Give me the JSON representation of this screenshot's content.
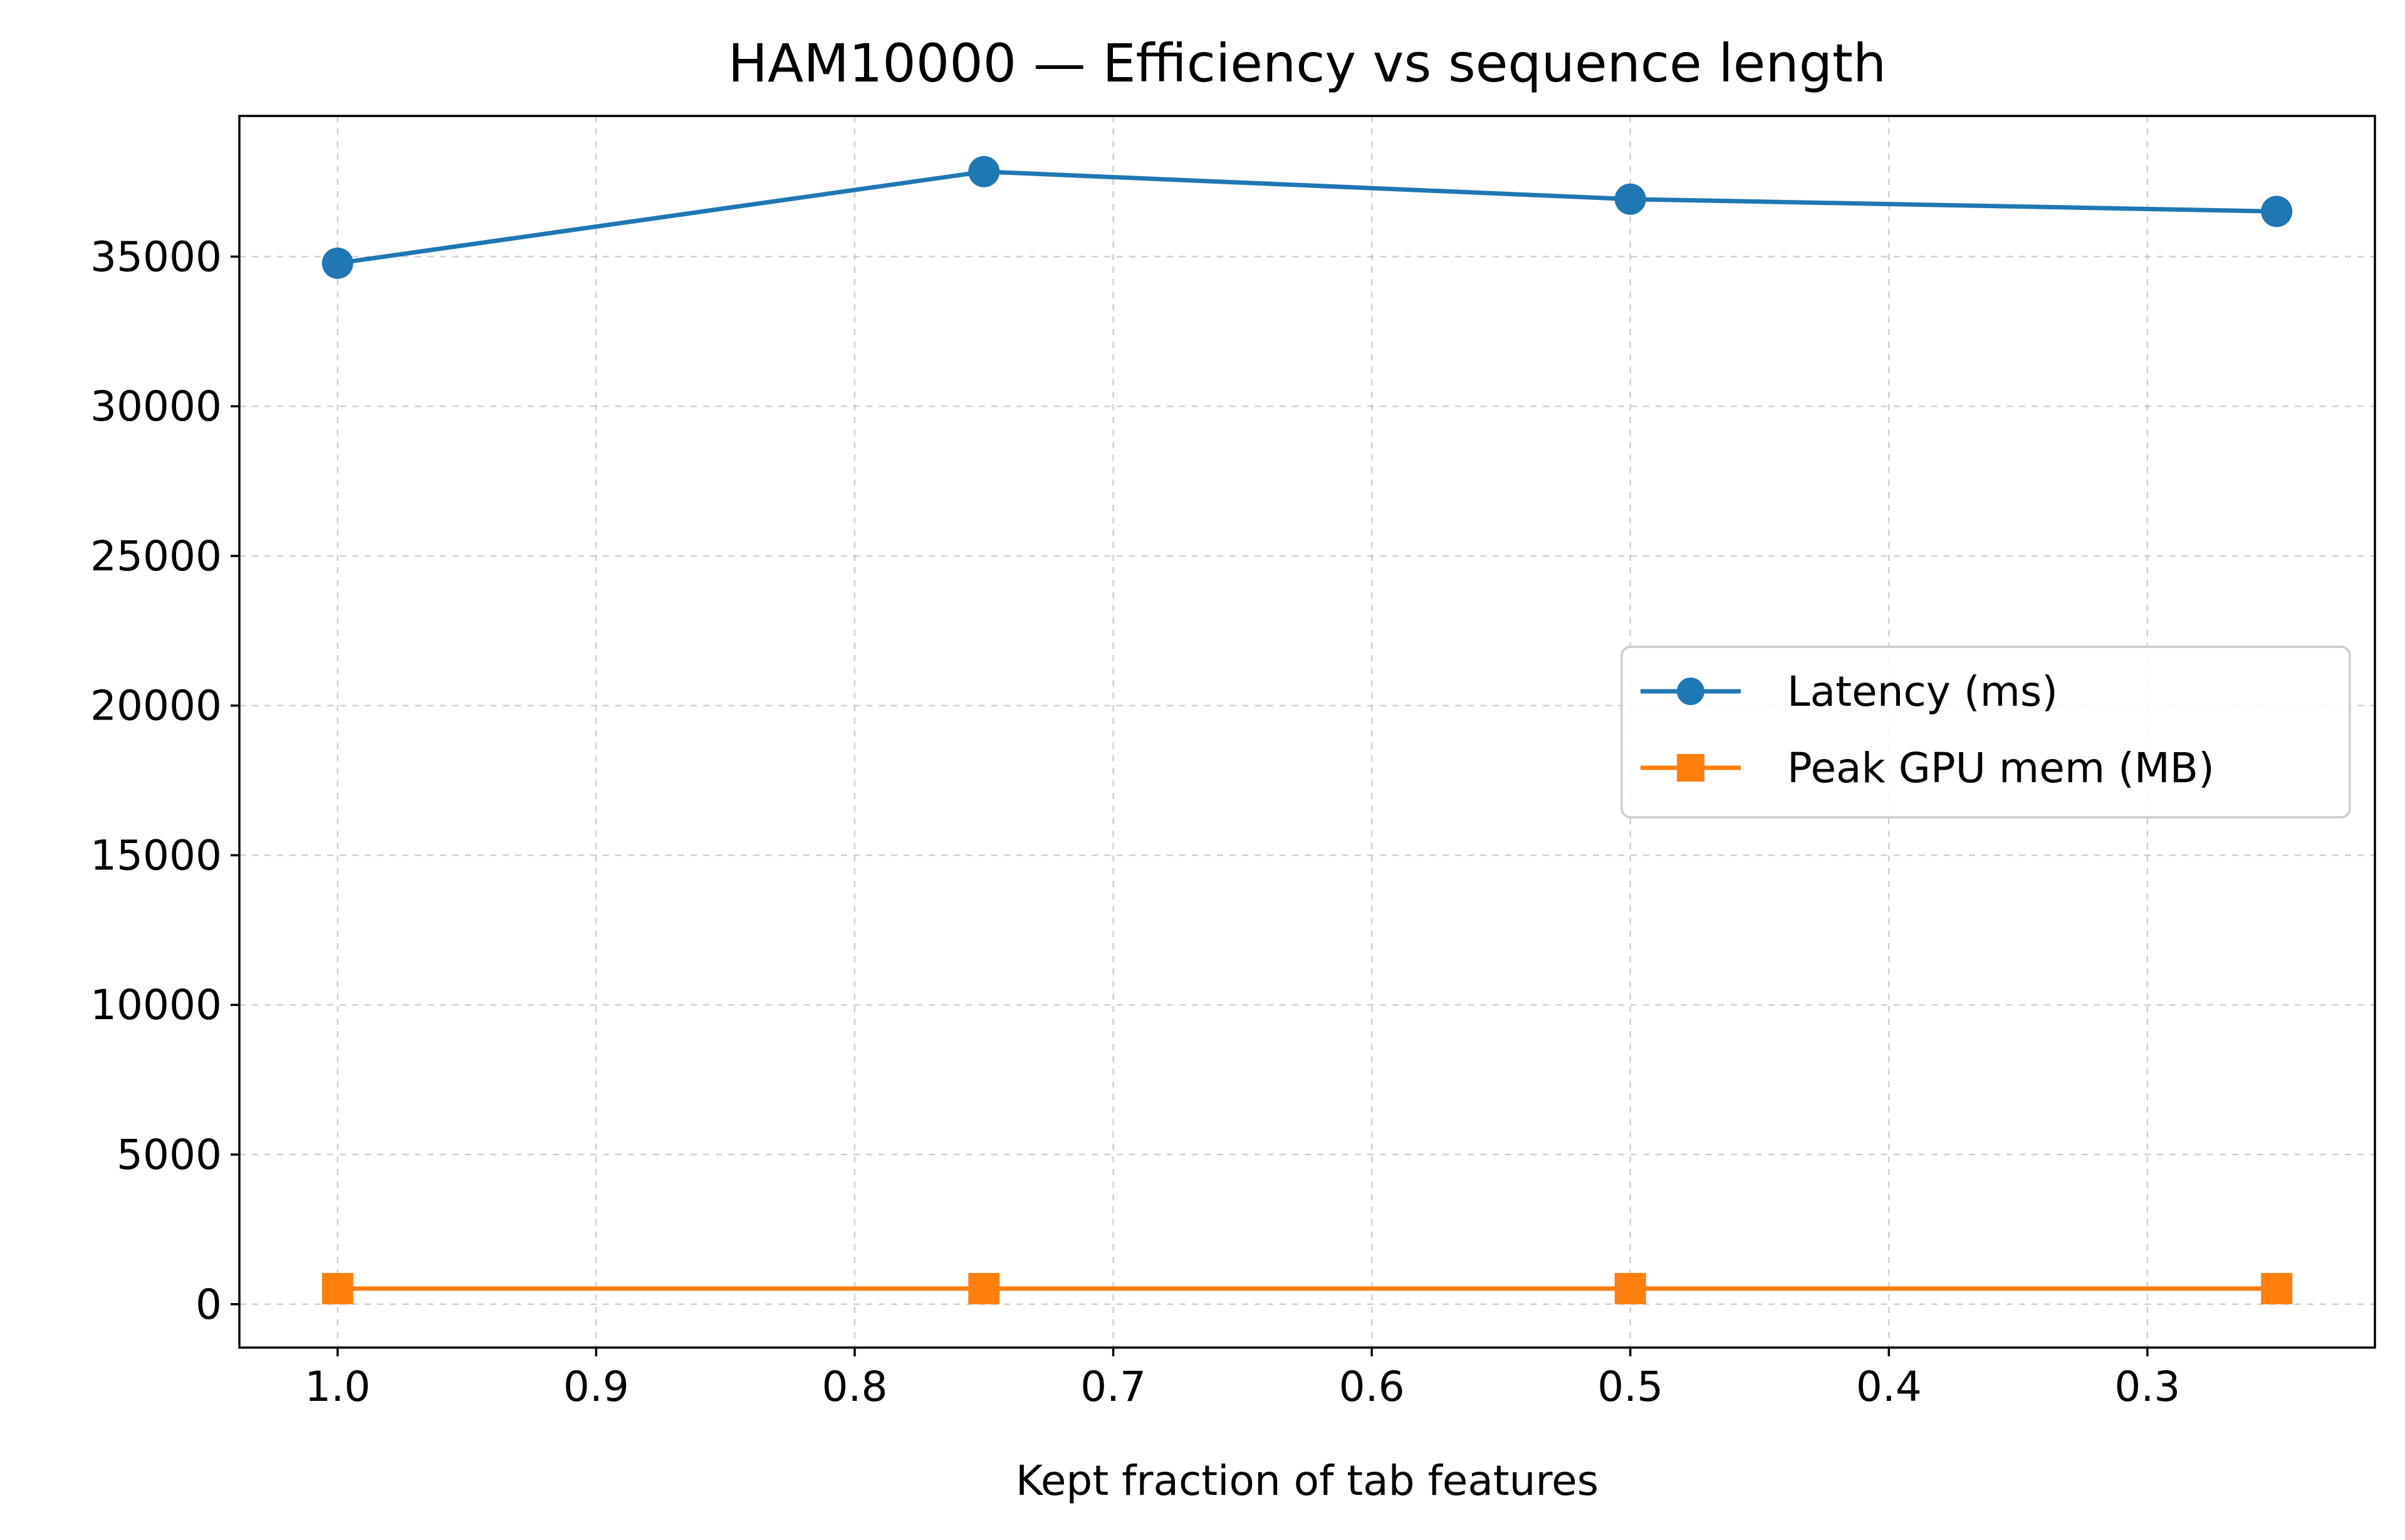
{
  "chart_data": {
    "type": "line",
    "title": "HAM10000 — Efficiency vs sequence length",
    "xlabel": "Kept fraction of tab features",
    "ylabel": "",
    "x_inverted": true,
    "xlim": [
      1.038,
      0.212
    ],
    "ylim": [
      -1450,
      39700
    ],
    "x_ticks": [
      1.0,
      0.9,
      0.8,
      0.7,
      0.6,
      0.5,
      0.4,
      0.3
    ],
    "x_tick_labels": [
      "1.0",
      "0.9",
      "0.8",
      "0.7",
      "0.6",
      "0.5",
      "0.4",
      "0.3"
    ],
    "y_ticks": [
      0,
      5000,
      10000,
      15000,
      20000,
      25000,
      30000,
      35000
    ],
    "y_tick_labels": [
      "0",
      "5000",
      "10000",
      "15000",
      "20000",
      "25000",
      "30000",
      "35000"
    ],
    "grid": true,
    "legend_position": "center-right",
    "x": [
      1.0,
      0.75,
      0.5,
      0.25
    ],
    "series": [
      {
        "name": "Latency (ms)",
        "marker": "circle",
        "color": "#1f77b4",
        "values": [
          34780,
          37840,
          36920,
          36510
        ]
      },
      {
        "name": "Peak GPU mem (MB)",
        "marker": "square",
        "color": "#ff7f0e",
        "values": [
          520,
          520,
          520,
          520
        ]
      }
    ]
  }
}
